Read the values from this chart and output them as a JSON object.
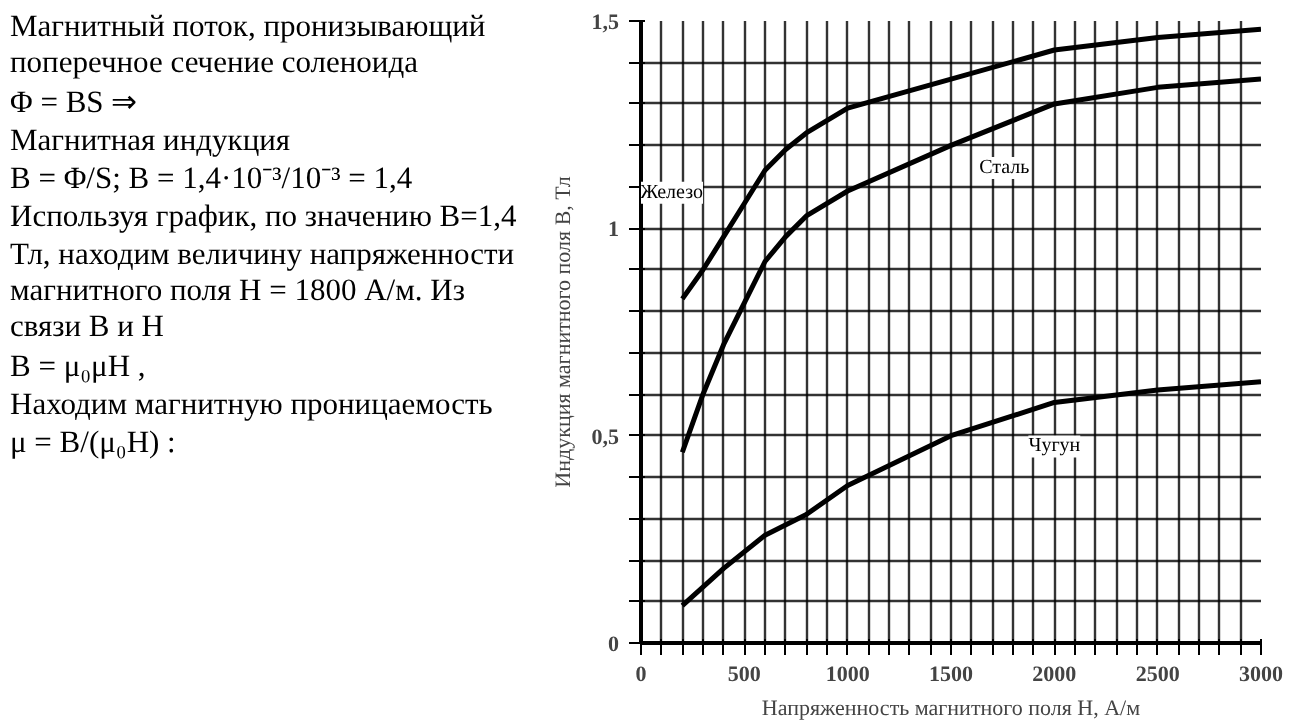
{
  "chart_data": {
    "type": "line",
    "xlabel": "Напряженность магнитного поля H, А/м",
    "ylabel": "Индукция магнитного поля B, Тл",
    "xlim": [
      0,
      3000
    ],
    "ylim": [
      0,
      1.5
    ],
    "xticks": [
      0,
      {
        "value": 100,
        "label": null
      },
      {
        "value": 200,
        "label": null
      },
      {
        "value": 300,
        "label": null
      },
      {
        "value": 400,
        "label": null
      },
      500,
      {
        "value": 600,
        "label": null
      },
      {
        "value": 700,
        "label": null
      },
      {
        "value": 800,
        "label": null
      },
      {
        "value": 900,
        "label": null
      },
      1000,
      {
        "value": 1100,
        "label": null
      },
      {
        "value": 1200,
        "label": null
      },
      {
        "value": 1300,
        "label": null
      },
      {
        "value": 1400,
        "label": null
      },
      1500,
      {
        "value": 1600,
        "label": null
      },
      {
        "value": 1700,
        "label": null
      },
      {
        "value": 1800,
        "label": null
      },
      {
        "value": 1900,
        "label": null
      },
      2000,
      {
        "value": 2100,
        "label": null
      },
      {
        "value": 2200,
        "label": null
      },
      {
        "value": 2300,
        "label": null
      },
      {
        "value": 2400,
        "label": null
      },
      2500,
      {
        "value": 2600,
        "label": null
      },
      {
        "value": 2700,
        "label": null
      },
      {
        "value": 2800,
        "label": null
      },
      {
        "value": 2900,
        "label": null
      },
      3000
    ],
    "yticks": [
      0,
      {
        "value": 0.1,
        "label": null
      },
      {
        "value": 0.2,
        "label": null
      },
      {
        "value": 0.3,
        "label": null
      },
      {
        "value": 0.4,
        "label": null
      },
      {
        "value": 0.5,
        "label": "0,5"
      },
      {
        "value": 0.6,
        "label": null
      },
      {
        "value": 0.7,
        "label": null
      },
      {
        "value": 0.8,
        "label": null
      },
      {
        "value": 0.9,
        "label": null
      },
      1,
      {
        "value": 1.1,
        "label": null
      },
      {
        "value": 1.2,
        "label": null
      },
      {
        "value": 1.3,
        "label": null
      },
      {
        "value": 1.4,
        "label": null
      },
      {
        "value": 1.5,
        "label": "1,5"
      }
    ],
    "grid": true,
    "marker": "none",
    "line_style": "solid",
    "series": [
      {
        "name": "Железо",
        "color": "#000000",
        "x": [
          200,
          300,
          400,
          500,
          600,
          700,
          800,
          1000,
          1500,
          2000,
          2500,
          3000
        ],
        "values": [
          0.83,
          0.9,
          0.98,
          1.06,
          1.14,
          1.19,
          1.23,
          1.29,
          1.36,
          1.43,
          1.46,
          1.48
        ]
      },
      {
        "name": "Сталь",
        "color": "#000000",
        "x": [
          200,
          300,
          400,
          500,
          600,
          700,
          800,
          1000,
          1500,
          2000,
          2500,
          3000
        ],
        "values": [
          0.46,
          0.6,
          0.72,
          0.82,
          0.92,
          0.98,
          1.03,
          1.09,
          1.2,
          1.3,
          1.34,
          1.36
        ]
      },
      {
        "name": "Чугун",
        "color": "#000000",
        "x": [
          200,
          400,
          600,
          800,
          1000,
          1500,
          2000,
          2500,
          3000
        ],
        "values": [
          0.09,
          0.18,
          0.26,
          0.31,
          0.38,
          0.5,
          0.58,
          0.61,
          0.63
        ]
      }
    ],
    "annotations": [
      "Магнитный поток, пронизывающий поперечное сечение соленоида",
      "Φ = BS  ⇒",
      "Магнитная индукция",
      "B = Φ/S;   B = 1,4·10⁻³/10⁻³ = 1,4",
      "Используя график, по значению B=1,4 Тл, находим величину напряженности магнитного поля H = 1800 А/м.  Из связи B и H",
      "B = μ₀μH ,",
      "Находим магнитную проницаемость",
      "μ = B/(μ₀H) :"
    ]
  }
}
